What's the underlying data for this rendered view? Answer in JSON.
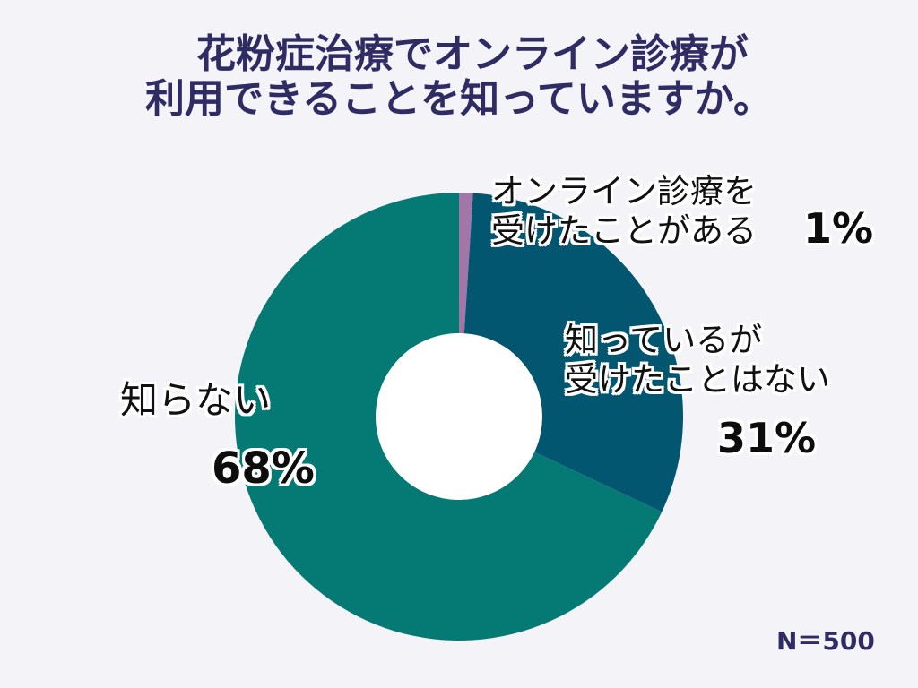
{
  "title": {
    "line1": "花粉症治療でオンライン診療が",
    "line2": "利用できることを知っていますか。",
    "color": "#2e2c63"
  },
  "labels": {
    "online": {
      "line1": "オンライン診療を",
      "line2": "受けたことがある",
      "pct": "1%"
    },
    "known": {
      "line1": "知っているが",
      "line2": "受けたことはない",
      "pct": "31%"
    },
    "unknown": {
      "line1": "知らない",
      "pct": "68%"
    }
  },
  "sample_size": "N＝500",
  "background": "#f4f3f8",
  "chart_data": {
    "type": "pie",
    "variant": "donut",
    "title": "花粉症治療でオンライン診療が利用できることを知っていますか。",
    "categories": [
      "オンライン診療を受けたことがある",
      "知っているが受けたことはない",
      "知らない"
    ],
    "values": [
      1,
      31,
      68
    ],
    "unit": "%",
    "colors": [
      "#a376a8",
      "#02566f",
      "#057a74"
    ],
    "start_angle_deg": 0,
    "direction": "clockwise",
    "center": [
      512,
      465
    ],
    "outer_radius": 250,
    "inner_radius": 93,
    "annotations": [
      "N＝500"
    ],
    "legend": "none (direct labels)"
  }
}
